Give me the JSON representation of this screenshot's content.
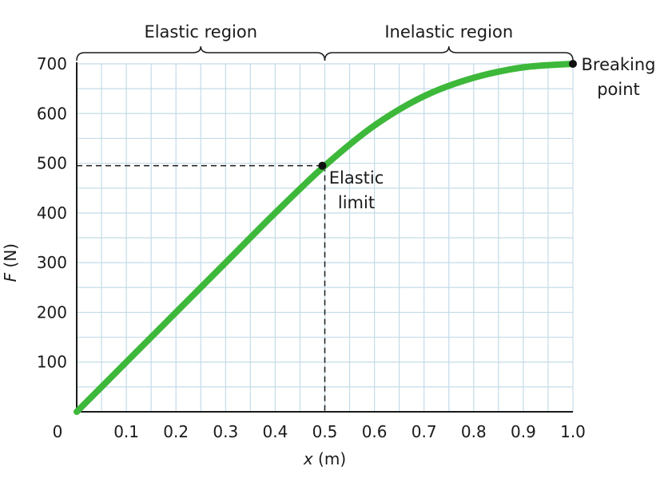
{
  "chart_data": {
    "type": "line",
    "xlabel": {
      "var": "x",
      "unit": " (m)"
    },
    "ylabel": {
      "var": "F",
      "unit": " (N)"
    },
    "xlim": [
      0,
      1.0
    ],
    "ylim": [
      0,
      700
    ],
    "origin_label": "0",
    "x_ticks": [
      "0.1",
      "0.2",
      "0.3",
      "0.4",
      "0.5",
      "0.6",
      "0.7",
      "0.8",
      "0.9",
      "1.0"
    ],
    "y_ticks": [
      "100",
      "200",
      "300",
      "400",
      "500",
      "600",
      "700"
    ],
    "grid": true,
    "series": [
      {
        "color": "#3db83a",
        "x": [
          0,
          0.1,
          0.2,
          0.3,
          0.4,
          0.5,
          0.6,
          0.7,
          0.8,
          0.9,
          1.0
        ],
        "y": [
          0,
          100,
          200,
          300,
          400,
          495,
          576,
          635,
          672,
          693,
          700
        ]
      }
    ],
    "points": [
      {
        "name": "elastic-limit",
        "x": 0.495,
        "y": 495,
        "label_lines": [
          "Elastic",
          "limit"
        ]
      },
      {
        "name": "breaking-point",
        "x": 1.0,
        "y": 700,
        "label_lines": [
          "Breaking",
          "point"
        ]
      }
    ],
    "regions": [
      {
        "name": "elastic-region",
        "label": "Elastic region",
        "x_range": [
          0,
          0.5
        ]
      },
      {
        "name": "inelastic-region",
        "label": "Inelastic region",
        "x_range": [
          0.5,
          1.0
        ]
      }
    ]
  }
}
